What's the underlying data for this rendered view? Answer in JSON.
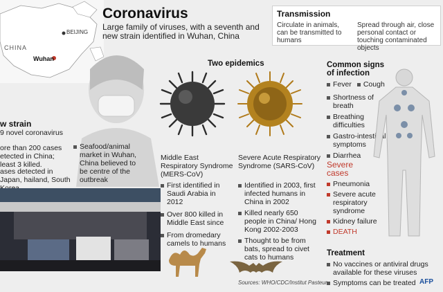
{
  "title": "Coronavirus",
  "subtitle": "Large family of viruses, with a seventh and new strain identified in Wuhan, China",
  "map": {
    "country": "CHINA",
    "capital": "BEIJING",
    "city": "Wuhan"
  },
  "transmission": {
    "title": "Transmission",
    "col1": "Circulate in animals, can be transmitted to humans",
    "col2": "Spread through air, close personal contact or touching contaminated objects"
  },
  "new_strain": {
    "title": "w strain",
    "subtitle": "9 novel coronavirus",
    "items": [
      "ore than 200 cases etected in China; least 3 killed.",
      "ases detected in Japan, hailand, South Korea"
    ],
    "market_note": "Seafood/animal market in Wuhan, China believed to be centre of the outbreak"
  },
  "epidemics": {
    "title": "Two epidemics",
    "mers": {
      "name": "Middle East Respiratory Syndrome (MERS-CoV)",
      "items": [
        "First identified in Saudi Arabia in 2012",
        "Over 800 killed in Middle East since",
        "From dromedary camels to humans"
      ]
    },
    "sars": {
      "name": "Severe Acute Respiratory Syndrome (SARS-CoV)",
      "items": [
        "Identified in 2003, first infected humans in China in 2002",
        "Killed nearly 650 people in China/ Hong Kong 2002-2003",
        "Thought to be from bats, spread to civet cats to humans"
      ]
    }
  },
  "signs": {
    "title": "Common signs of infection",
    "row1a": "Fever",
    "row1b": "Cough",
    "items": [
      "Shortness of breath",
      "Breathing difficulties",
      "Gastro-intestinal symptoms",
      "Diarrhea"
    ]
  },
  "severe": {
    "title": "Severe cases",
    "items": [
      "Pneumonia",
      "Severe acute respiratory syndrome",
      "Kidney failure",
      "DEATH"
    ]
  },
  "treatment": {
    "title": "Treatment",
    "items": [
      "No vaccines or antiviral drugs available for these viruses",
      "Symptoms can be treated"
    ]
  },
  "sources": "Sources: WHO/CDC/Institut Pasteur",
  "logo": "AFP",
  "colors": {
    "red": "#c0392b",
    "mers_virus": "#2b2b2b",
    "sars_virus": "#b07a1a",
    "background": "#eeeeee"
  }
}
